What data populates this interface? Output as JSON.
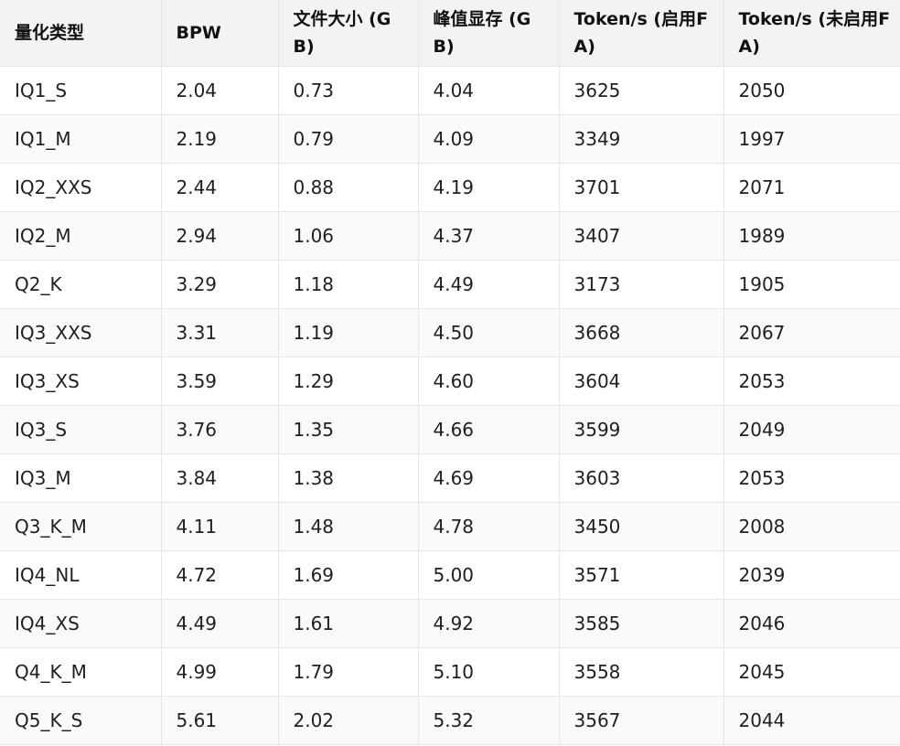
{
  "table": {
    "headers": [
      "量化类型",
      "BPW",
      "文件大小 (GB)",
      "峰值显存 (GB)",
      "Token/s (启用FA)",
      "Token/s (未启用FA)"
    ],
    "rows": [
      [
        "IQ1_S",
        "2.04",
        "0.73",
        "4.04",
        "3625",
        "2050"
      ],
      [
        "IQ1_M",
        "2.19",
        "0.79",
        "4.09",
        "3349",
        "1997"
      ],
      [
        "IQ2_XXS",
        "2.44",
        "0.88",
        "4.19",
        "3701",
        "2071"
      ],
      [
        "IQ2_M",
        "2.94",
        "1.06",
        "4.37",
        "3407",
        "1989"
      ],
      [
        "Q2_K",
        "3.29",
        "1.18",
        "4.49",
        "3173",
        "1905"
      ],
      [
        "IQ3_XXS",
        "3.31",
        "1.19",
        "4.50",
        "3668",
        "2067"
      ],
      [
        "IQ3_XS",
        "3.59",
        "1.29",
        "4.60",
        "3604",
        "2053"
      ],
      [
        "IQ3_S",
        "3.76",
        "1.35",
        "4.66",
        "3599",
        "2049"
      ],
      [
        "IQ3_M",
        "3.84",
        "1.38",
        "4.69",
        "3603",
        "2053"
      ],
      [
        "Q3_K_M",
        "4.11",
        "1.48",
        "4.78",
        "3450",
        "2008"
      ],
      [
        "IQ4_NL",
        "4.72",
        "1.69",
        "5.00",
        "3571",
        "2039"
      ],
      [
        "IQ4_XS",
        "4.49",
        "1.61",
        "4.92",
        "3585",
        "2046"
      ],
      [
        "Q4_K_M",
        "4.99",
        "1.79",
        "5.10",
        "3558",
        "2045"
      ],
      [
        "Q5_K_S",
        "5.61",
        "2.02",
        "5.32",
        "3567",
        "2044"
      ]
    ]
  }
}
